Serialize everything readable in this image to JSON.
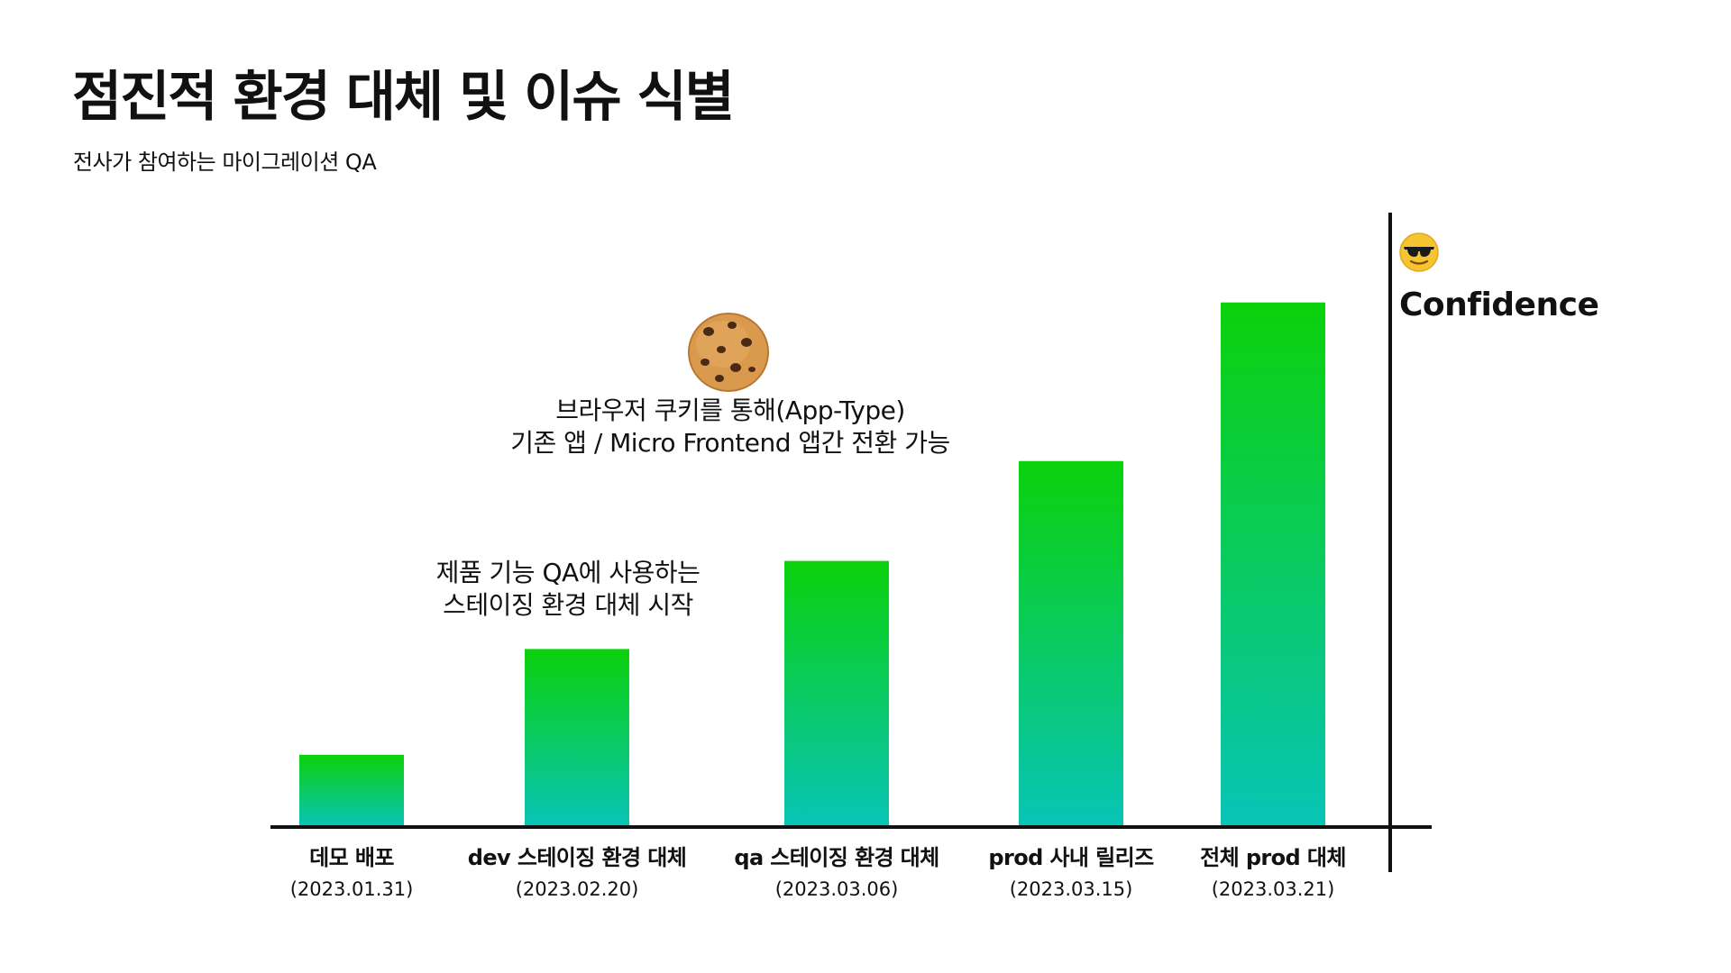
{
  "header": {
    "title": "점진적 환경 대체 및 이슈 식별",
    "subtitle": "전사가 참여하는 마이그레이션 QA"
  },
  "annotations": {
    "cookie": {
      "line1": "브라우저 쿠키를 통해(App-Type)",
      "line2": "기존 앱 / Micro Frontend 앱간 전환 가능",
      "icon": "cookie-icon"
    },
    "qa_env": {
      "line1": "제품 기능 QA에 사용하는",
      "line2": "스테이징 환경 대체 시작"
    }
  },
  "confidence": {
    "label": "Confidence",
    "icon": "sunglasses-face-icon"
  },
  "colors": {
    "bar_top": "#0bd10b",
    "bar_bottom": "#08c4b6",
    "axis": "#111111",
    "text": "#111111"
  },
  "chart_data": {
    "type": "bar",
    "categories": [
      {
        "label": "데모 배포",
        "date": "(2023.01.31)"
      },
      {
        "label": "dev 스테이징 환경 대체",
        "date": "(2023.02.20)"
      },
      {
        "label": "qa 스테이징 환경 대체",
        "date": "(2023.03.06)"
      },
      {
        "label": "prod 사내 릴리즈",
        "date": "(2023.03.15)"
      },
      {
        "label": "전체 prod 대체",
        "date": "(2023.03.21)"
      }
    ],
    "values": [
      12,
      30,
      45,
      62,
      89
    ],
    "ylim": [
      0,
      100
    ],
    "ylabel": "Confidence",
    "grid": false,
    "legend": "none"
  }
}
